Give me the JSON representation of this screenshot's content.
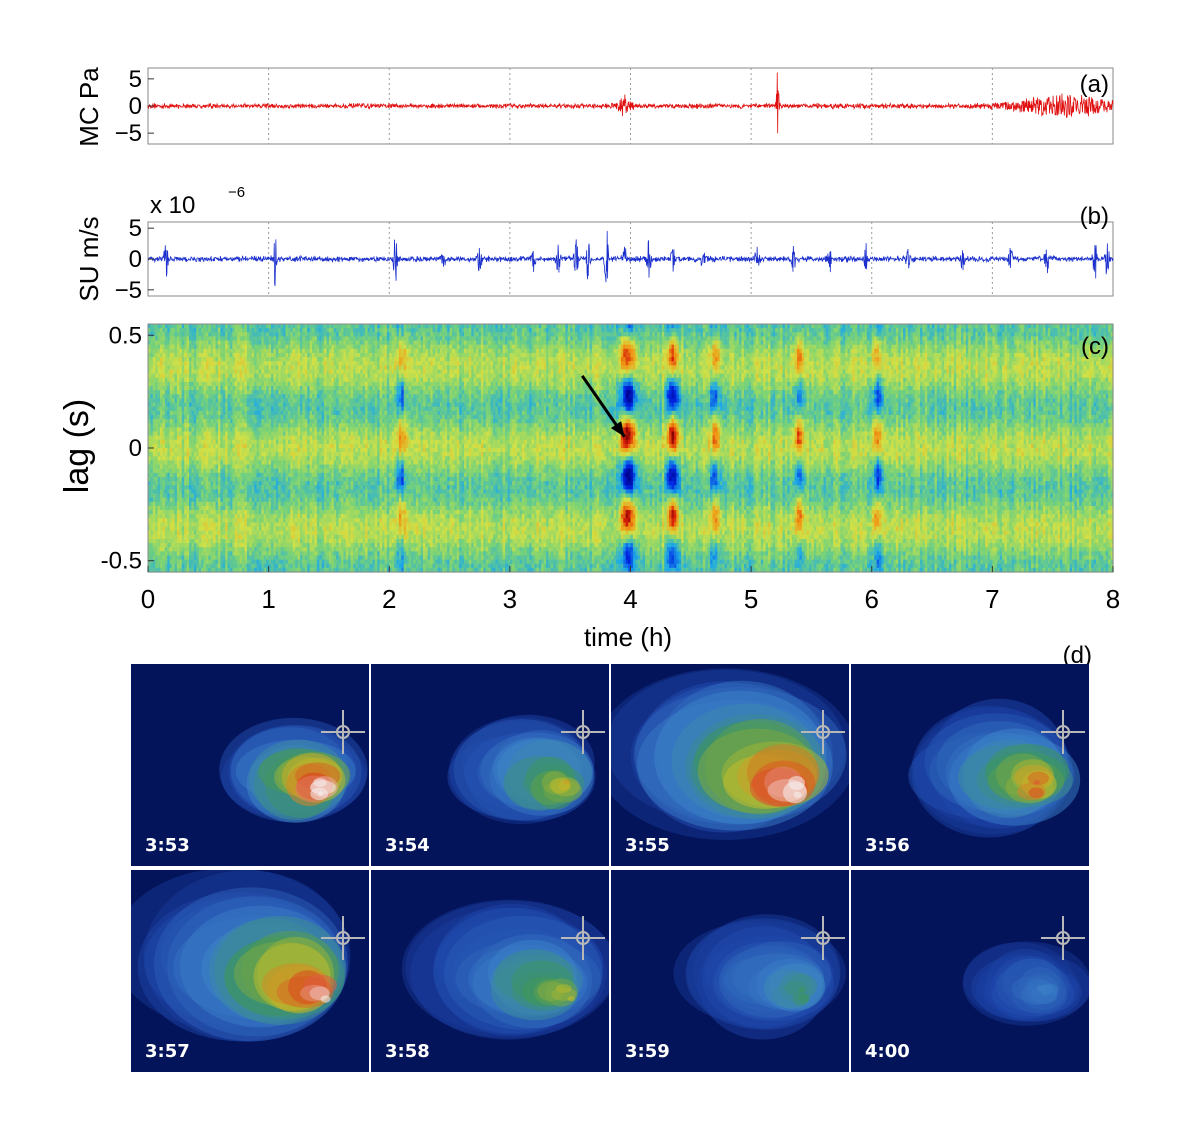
{
  "chart_data": [
    {
      "type": "line",
      "panel_label": "(a)",
      "ylabel": "MC Pa",
      "xlim": [
        0,
        8
      ],
      "ylim": [
        -7,
        7
      ],
      "yticks": [
        "5",
        "0",
        "−5"
      ],
      "ytick_values": [
        5,
        0,
        -5
      ],
      "color": "#e01010",
      "baseline_amplitude": 0.4,
      "bursts": [
        {
          "t": 3.95,
          "amp": 1.6,
          "width": 0.06
        },
        {
          "t": 5.22,
          "amp": 7.0,
          "width": 0.01
        },
        {
          "t": 7.6,
          "amp": 1.8,
          "width": 0.4
        }
      ]
    },
    {
      "type": "line",
      "panel_label": "(b)",
      "ylabel": "SU m/s",
      "scale_label": "x 10",
      "scale_exponent": "−6",
      "xlim": [
        0,
        8
      ],
      "ylim": [
        -6,
        6
      ],
      "yticks": [
        "5",
        "0",
        "−5"
      ],
      "ytick_values": [
        5,
        0,
        -5
      ],
      "color": "#1a2fcc",
      "baseline_amplitude": 0.4,
      "bursts": [
        {
          "t": 0.15,
          "amp": 3.0
        },
        {
          "t": 1.05,
          "amp": 4.5
        },
        {
          "t": 2.05,
          "amp": 4.0
        },
        {
          "t": 2.45,
          "amp": 1.5
        },
        {
          "t": 2.75,
          "amp": 3.0
        },
        {
          "t": 3.2,
          "amp": 2.0
        },
        {
          "t": 3.4,
          "amp": 2.5
        },
        {
          "t": 3.55,
          "amp": 3.0
        },
        {
          "t": 3.65,
          "amp": 4.5
        },
        {
          "t": 3.8,
          "amp": 5.0
        },
        {
          "t": 3.95,
          "amp": 2.5
        },
        {
          "t": 4.15,
          "amp": 3.5
        },
        {
          "t": 4.35,
          "amp": 2.0
        },
        {
          "t": 4.6,
          "amp": 2.0
        },
        {
          "t": 5.05,
          "amp": 2.5
        },
        {
          "t": 5.35,
          "amp": 2.0
        },
        {
          "t": 5.65,
          "amp": 2.5
        },
        {
          "t": 5.95,
          "amp": 3.0
        },
        {
          "t": 6.3,
          "amp": 2.0
        },
        {
          "t": 6.75,
          "amp": 2.0
        },
        {
          "t": 7.15,
          "amp": 2.0
        },
        {
          "t": 7.45,
          "amp": 3.0
        },
        {
          "t": 7.85,
          "amp": 4.5
        },
        {
          "t": 7.95,
          "amp": 2.5
        }
      ]
    },
    {
      "type": "heatmap",
      "panel_label": "(c)",
      "xlabel": "time (h)",
      "ylabel": "lag (s)",
      "xlim": [
        0,
        8
      ],
      "ylim": [
        -0.55,
        0.55
      ],
      "xticks": [
        "0",
        "1",
        "2",
        "3",
        "4",
        "5",
        "6",
        "7",
        "8"
      ],
      "yticks": [
        "0.5",
        "0",
        "-0.5"
      ],
      "ytick_values": [
        0.5,
        0,
        -0.5
      ],
      "arrow": {
        "from": [
          3.6,
          0.32
        ],
        "to": [
          3.95,
          0.05
        ]
      },
      "events": [
        {
          "t": 2.1,
          "strength": 0.45,
          "width": 0.04
        },
        {
          "t": 3.98,
          "strength": 1.0,
          "width": 0.06
        },
        {
          "t": 4.35,
          "strength": 0.9,
          "width": 0.05
        },
        {
          "t": 4.7,
          "strength": 0.55,
          "width": 0.04
        },
        {
          "t": 5.4,
          "strength": 0.55,
          "width": 0.035
        },
        {
          "t": 6.05,
          "strength": 0.55,
          "width": 0.04
        }
      ]
    }
  ],
  "thermal_panel": {
    "label": "(d)",
    "frames": [
      {
        "time": "3:53",
        "intensity": 1.0,
        "spread": 0.25
      },
      {
        "time": "3:54",
        "intensity": 0.55,
        "spread": 0.3
      },
      {
        "time": "3:55",
        "intensity": 0.95,
        "spread": 0.55
      },
      {
        "time": "3:56",
        "intensity": 0.7,
        "spread": 0.35
      },
      {
        "time": "3:57",
        "intensity": 0.85,
        "spread": 0.55
      },
      {
        "time": "3:58",
        "intensity": 0.5,
        "spread": 0.4
      },
      {
        "time": "3:59",
        "intensity": 0.3,
        "spread": 0.3
      },
      {
        "time": "4:00",
        "intensity": 0.1,
        "spread": 0.15
      }
    ]
  }
}
